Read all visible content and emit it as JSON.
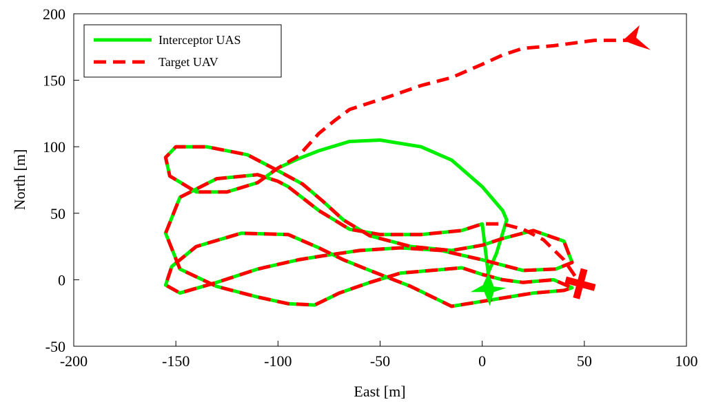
{
  "chart_data": {
    "type": "line",
    "title": "",
    "xlabel": "East [m]",
    "ylabel": "North [m]",
    "xlim": [
      -200,
      100
    ],
    "ylim": [
      -50,
      200
    ],
    "xticks": [
      -200,
      -150,
      -100,
      -50,
      0,
      50,
      100
    ],
    "yticks": [
      -50,
      0,
      50,
      100,
      150,
      200
    ],
    "xtick_labels": [
      "-200",
      "-150",
      "-100",
      "-50",
      "0",
      "50",
      "100"
    ],
    "ytick_labels": [
      "-50",
      "0",
      "50",
      "100",
      "150",
      "200"
    ],
    "grid": false,
    "legend_position": "top-left",
    "series": [
      {
        "name": "Interceptor UAS",
        "color": "#00ee00",
        "style": "solid",
        "marker": "arrow-up",
        "x": [
          2,
          7,
          12,
          10,
          0,
          -15,
          -30,
          -50,
          -65,
          -80,
          -90,
          -100,
          -110,
          -125,
          -140,
          -153,
          -155,
          -150,
          -135,
          -115,
          -100,
          -88,
          -78,
          -68,
          -55,
          -35,
          -15,
          0,
          10,
          25,
          40,
          44,
          36,
          20,
          0,
          -20,
          -40,
          -60,
          -78,
          -90,
          -110,
          -130,
          -148,
          -155,
          -152,
          -140,
          -118,
          -95,
          -80,
          -68,
          -55,
          -35,
          -15,
          5,
          25,
          40,
          44,
          35,
          20,
          10,
          0,
          -10,
          -25,
          -40,
          -55,
          -70,
          -82,
          -95,
          -110,
          -130,
          -148,
          -155,
          -148,
          -130,
          -110,
          -100,
          -95,
          -90,
          -80,
          -65,
          -50,
          -30,
          -10,
          0,
          3
        ],
        "y": [
          2,
          20,
          45,
          52,
          70,
          90,
          100,
          105,
          104,
          97,
          91,
          84,
          73,
          66,
          66,
          78,
          92,
          100,
          100,
          94,
          82,
          72,
          59,
          45,
          33,
          25,
          22,
          26,
          31,
          37,
          29,
          13,
          8,
          7,
          15,
          22,
          24,
          22,
          18,
          15,
          8,
          -2,
          -10,
          -4,
          10,
          25,
          35,
          34,
          24,
          15,
          7,
          -5,
          -20,
          -15,
          -10,
          -8,
          -6,
          0,
          -2,
          0,
          4,
          9,
          7,
          5,
          -2,
          -10,
          -19,
          -18,
          -13,
          -5,
          8,
          35,
          62,
          76,
          79,
          74,
          70,
          64,
          52,
          38,
          34,
          34,
          37,
          42,
          4
        ]
      },
      {
        "name": "Target UAV",
        "color": "#ff0000",
        "style": "dashed",
        "marker": "arrow-left",
        "x": [
          75,
          55,
          35,
          20,
          10,
          0,
          -15,
          -30,
          -45,
          -55,
          -65,
          -72,
          -80,
          -90,
          -100,
          -110,
          -125,
          -140,
          -153,
          -155,
          -150,
          -135,
          -115,
          -100,
          -88,
          -78,
          -68,
          -55,
          -35,
          -15,
          0,
          10,
          25,
          40,
          44,
          36,
          20,
          0,
          -20,
          -40,
          -60,
          -78,
          -90,
          -110,
          -130,
          -148,
          -155,
          -152,
          -140,
          -118,
          -95,
          -80,
          -68,
          -55,
          -35,
          -15,
          5,
          25,
          40,
          44,
          35,
          20,
          10,
          0,
          -10,
          -25,
          -40,
          -55,
          -70,
          -82,
          -95,
          -110,
          -130,
          -148,
          -155,
          -148,
          -130,
          -110,
          -100,
          -95,
          -90,
          -80,
          -65,
          -50,
          -30,
          -10,
          0,
          10,
          20,
          30,
          40,
          48
        ],
        "y": [
          180,
          180,
          176,
          174,
          169,
          162,
          152,
          146,
          138,
          133,
          128,
          120,
          110,
          93,
          84,
          73,
          66,
          66,
          78,
          92,
          100,
          100,
          94,
          82,
          72,
          59,
          45,
          33,
          25,
          22,
          26,
          31,
          37,
          29,
          13,
          8,
          7,
          15,
          22,
          24,
          22,
          18,
          15,
          8,
          -2,
          -10,
          -4,
          10,
          25,
          35,
          34,
          24,
          15,
          7,
          -5,
          -20,
          -15,
          -10,
          -8,
          -6,
          0,
          -2,
          0,
          4,
          9,
          7,
          5,
          -2,
          -10,
          -19,
          -18,
          -13,
          -5,
          8,
          35,
          62,
          76,
          79,
          74,
          70,
          64,
          52,
          38,
          34,
          34,
          37,
          42,
          42,
          38,
          30,
          15,
          -3
        ]
      }
    ],
    "end_markers": [
      {
        "series": "Target UAV",
        "shape": "cross",
        "x": 48,
        "y": -3,
        "color": "#ff0000"
      },
      {
        "series": "Target UAV",
        "shape": "arrow-left",
        "x": 75,
        "y": 180,
        "color": "#ff0000"
      },
      {
        "series": "Interceptor UAS",
        "shape": "arrow-up",
        "x": 3,
        "y": -2,
        "color": "#00ee00"
      }
    ]
  }
}
